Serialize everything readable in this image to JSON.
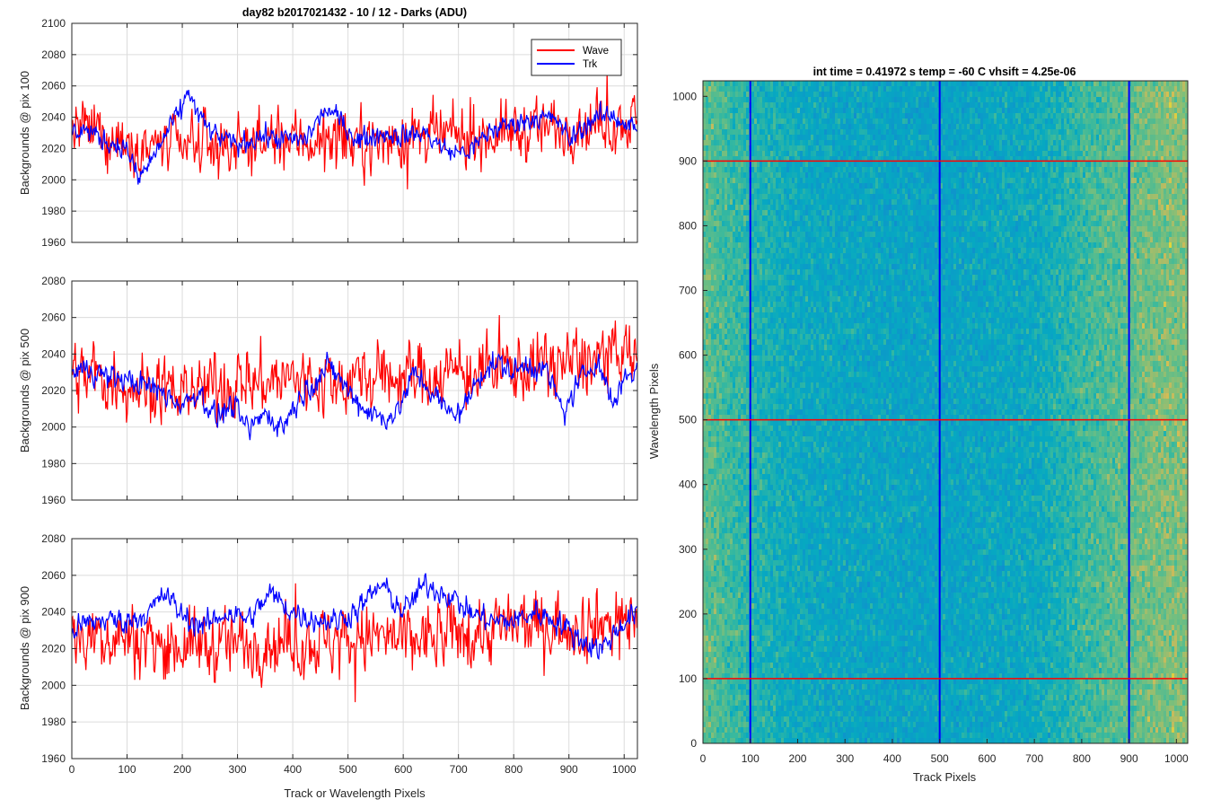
{
  "chart_data": [
    {
      "type": "line",
      "title": "day82 b2017021432 - 10 / 12 - Darks (ADU)",
      "xlabel": "",
      "ylabel": "Backgrounds @ pix 100",
      "xlim": [
        0,
        1024
      ],
      "ylim": [
        1960,
        2100
      ],
      "xticks": [
        0,
        100,
        200,
        300,
        400,
        500,
        600,
        700,
        800,
        900,
        1000
      ],
      "yticks": [
        1960,
        1980,
        2000,
        2020,
        2040,
        2060,
        2080,
        2100
      ],
      "grid": true,
      "legend": "top-right",
      "series": [
        {
          "name": "Wave",
          "color": "#ff0000",
          "x": [
            0,
            50,
            100,
            150,
            200,
            250,
            300,
            350,
            400,
            450,
            500,
            550,
            600,
            650,
            700,
            750,
            800,
            850,
            900,
            950,
            1000,
            1024
          ],
          "values": [
            2032,
            2030,
            2025,
            2022,
            2020,
            2022,
            2023,
            2024,
            2026,
            2025,
            2024,
            2025,
            2026,
            2027,
            2027,
            2029,
            2031,
            2033,
            2035,
            2036,
            2038,
            2037
          ]
        },
        {
          "name": "Trk",
          "color": "#0000ff",
          "x": [
            0,
            20,
            60,
            100,
            120,
            140,
            180,
            200,
            210,
            230,
            260,
            300,
            340,
            380,
            420,
            460,
            480,
            520,
            560,
            600,
            640,
            680,
            720,
            760,
            800,
            840,
            880,
            900,
            940,
            980,
            1000,
            1024
          ],
          "values": [
            2030,
            2033,
            2025,
            2020,
            2000,
            2010,
            2035,
            2045,
            2058,
            2040,
            2028,
            2022,
            2028,
            2026,
            2025,
            2045,
            2040,
            2025,
            2030,
            2028,
            2030,
            2018,
            2018,
            2032,
            2036,
            2040,
            2038,
            2025,
            2038,
            2042,
            2036,
            2033
          ]
        }
      ]
    },
    {
      "type": "line",
      "title": "",
      "xlabel": "",
      "ylabel": "Backgrounds @ pix 500",
      "xlim": [
        0,
        1024
      ],
      "ylim": [
        1960,
        2080
      ],
      "xticks": [
        0,
        100,
        200,
        300,
        400,
        500,
        600,
        700,
        800,
        900,
        1000
      ],
      "yticks": [
        1960,
        1980,
        2000,
        2020,
        2040,
        2060,
        2080
      ],
      "grid": true,
      "series": [
        {
          "name": "Wave",
          "color": "#ff0000",
          "x": [
            0,
            50,
            100,
            150,
            200,
            250,
            300,
            350,
            400,
            450,
            500,
            550,
            600,
            650,
            700,
            750,
            800,
            850,
            900,
            950,
            1000,
            1024
          ],
          "values": [
            2030,
            2027,
            2024,
            2021,
            2020,
            2022,
            2024,
            2025,
            2026,
            2025,
            2026,
            2027,
            2028,
            2029,
            2030,
            2031,
            2033,
            2034,
            2036,
            2037,
            2038,
            2038
          ]
        },
        {
          "name": "Trk",
          "color": "#0000ff",
          "x": [
            0,
            30,
            60,
            100,
            140,
            170,
            200,
            230,
            260,
            290,
            320,
            350,
            380,
            410,
            440,
            470,
            500,
            530,
            560,
            590,
            620,
            650,
            680,
            710,
            740,
            770,
            800,
            830,
            860,
            890,
            920,
            950,
            980,
            1000,
            1024
          ],
          "values": [
            2030,
            2032,
            2028,
            2026,
            2022,
            2018,
            2012,
            2020,
            2005,
            2012,
            1998,
            2008,
            2000,
            2015,
            2026,
            2033,
            2020,
            2010,
            2005,
            2008,
            2030,
            2020,
            2008,
            2010,
            2030,
            2035,
            2030,
            2035,
            2030,
            2008,
            2025,
            2038,
            2012,
            2028,
            2032
          ]
        }
      ]
    },
    {
      "type": "line",
      "title": "",
      "xlabel": "Track or Wavelength Pixels",
      "ylabel": "Backgrounds @ pix 900",
      "xlim": [
        0,
        1024
      ],
      "ylim": [
        1960,
        2080
      ],
      "xticks": [
        0,
        100,
        200,
        300,
        400,
        500,
        600,
        700,
        800,
        900,
        1000
      ],
      "yticks": [
        1960,
        1980,
        2000,
        2020,
        2040,
        2060,
        2080
      ],
      "grid": true,
      "series": [
        {
          "name": "Wave",
          "color": "#ff0000",
          "x": [
            0,
            50,
            100,
            150,
            200,
            250,
            300,
            350,
            400,
            450,
            500,
            550,
            600,
            650,
            700,
            750,
            800,
            850,
            900,
            950,
            1000,
            1024
          ],
          "values": [
            2030,
            2028,
            2026,
            2024,
            2022,
            2022,
            2023,
            2024,
            2024,
            2024,
            2025,
            2026,
            2024,
            2026,
            2028,
            2030,
            2032,
            2033,
            2034,
            2034,
            2035,
            2035
          ]
        },
        {
          "name": "Trk",
          "color": "#0000ff",
          "x": [
            0,
            20,
            60,
            100,
            140,
            170,
            200,
            240,
            280,
            320,
            360,
            400,
            440,
            480,
            520,
            560,
            600,
            640,
            680,
            720,
            760,
            800,
            840,
            880,
            920,
            960,
            1000,
            1024
          ],
          "values": [
            2030,
            2033,
            2036,
            2035,
            2040,
            2050,
            2038,
            2032,
            2040,
            2036,
            2050,
            2040,
            2036,
            2035,
            2042,
            2055,
            2040,
            2055,
            2050,
            2040,
            2035,
            2035,
            2040,
            2035,
            2025,
            2020,
            2035,
            2040
          ]
        }
      ]
    },
    {
      "type": "heatmap",
      "title": "int time = 0.41972 s    temp = -60 C    vhsift = 4.25e-06",
      "xlabel": "Track Pixels",
      "ylabel": "Wavelength Pixels",
      "xlim": [
        0,
        1024
      ],
      "ylim": [
        0,
        1024
      ],
      "xticks": [
        0,
        100,
        200,
        300,
        400,
        500,
        600,
        700,
        800,
        900,
        1000
      ],
      "yticks": [
        0,
        100,
        200,
        300,
        400,
        500,
        600,
        700,
        800,
        900,
        1000
      ],
      "colormap": "parula",
      "column_profile": {
        "x": [
          0,
          60,
          120,
          200,
          300,
          400,
          500,
          600,
          700,
          760,
          800,
          880,
          960,
          1024
        ],
        "level": [
          0.7,
          0.62,
          0.56,
          0.5,
          0.48,
          0.47,
          0.46,
          0.48,
          0.5,
          0.56,
          0.62,
          0.68,
          0.74,
          0.76
        ]
      },
      "marker_lines": {
        "vertical": {
          "color": "#0000ff",
          "x": [
            100,
            500,
            900
          ]
        },
        "horizontal": {
          "color": "#ff0000",
          "y": [
            100,
            500,
            900
          ]
        }
      }
    }
  ]
}
